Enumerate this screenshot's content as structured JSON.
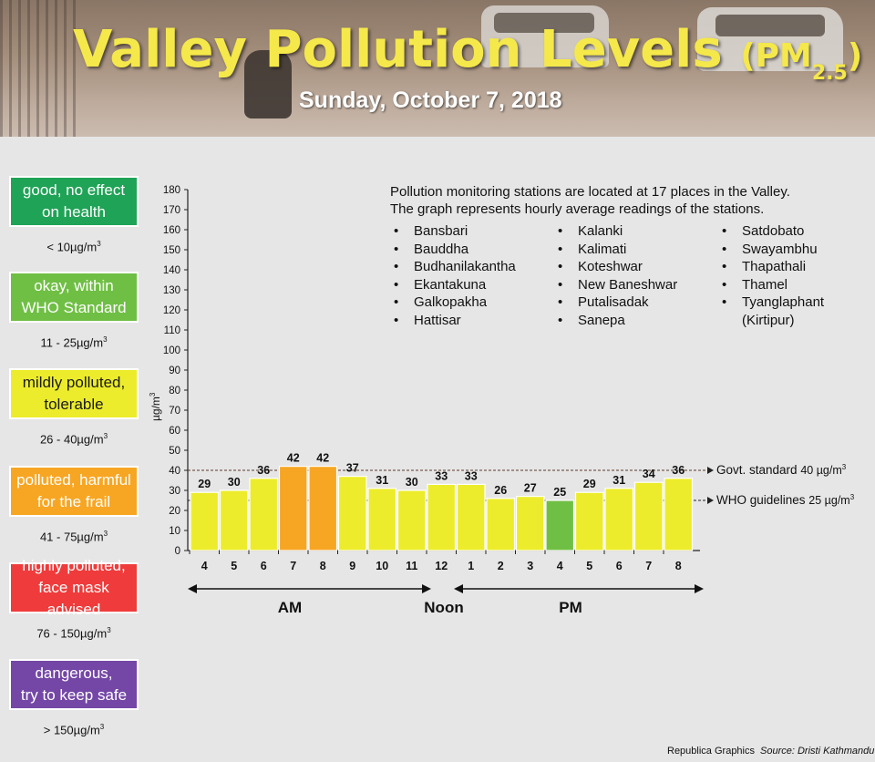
{
  "header": {
    "title": "Valley Pollution Levels",
    "title_unit": "(PM",
    "title_sub": "2.5",
    "title_close": ")",
    "date": "Sunday, October 7, 2018"
  },
  "legend": [
    {
      "label_line1": "good, no effect",
      "label_line2": "on health",
      "range_value": "< 10µg/m",
      "range_exp": "3",
      "color": "#1fa356"
    },
    {
      "label_line1": "okay, within",
      "label_line2": "WHO Standard",
      "range_value": "11 - 25µg/m",
      "range_exp": "3",
      "color": "#6fbf44"
    },
    {
      "label_line1": "mildly polluted,",
      "label_line2": "tolerable",
      "range_value": "26 - 40µg/m",
      "range_exp": "3",
      "color": "#ecec2c"
    },
    {
      "label_line1": "polluted, harmful",
      "label_line2": "for the frail",
      "range_value": "41 - 75µg/m",
      "range_exp": "3",
      "color": "#f7a623"
    },
    {
      "label_line1": "highly polluted,",
      "label_line2": "face mask advised",
      "range_value": "76 - 150µg/m",
      "range_exp": "3",
      "color": "#ef3b3b"
    },
    {
      "label_line1": "dangerous,",
      "label_line2": "try to keep safe",
      "range_value": "> 150µg/m",
      "range_exp": "3",
      "color": "#7447a6"
    }
  ],
  "info": {
    "line1": "Pollution monitoring stations are located at 17 places in the Valley.",
    "line2": "The graph represents hourly average readings of the stations.",
    "bullet": "•",
    "stations_col1": [
      "Bansbari",
      "Bauddha",
      "Budhanilakantha",
      "Ekantakuna",
      "Galkopakha",
      "Hattisar"
    ],
    "stations_col2": [
      "Kalanki",
      "Kalimati",
      "Koteshwar",
      "New Baneshwar",
      "Putalisadak",
      "Sanepa"
    ],
    "stations_col3": [
      "Satdobato",
      "Swayambhu",
      "Thapathali",
      "Thamel",
      "Tyanglaphant",
      "(Kirtipur)"
    ]
  },
  "chart_data": {
    "type": "bar",
    "ylabel": "µg/m",
    "ylabel_exp": "3",
    "ylim": [
      0,
      180
    ],
    "ytick_step": 10,
    "categories": [
      "4",
      "5",
      "6",
      "7",
      "8",
      "9",
      "10",
      "11",
      "12",
      "1",
      "2",
      "3",
      "4",
      "5",
      "6",
      "7",
      "8"
    ],
    "values": [
      29,
      30,
      36,
      42,
      42,
      37,
      31,
      30,
      33,
      33,
      26,
      27,
      25,
      29,
      31,
      34,
      36
    ],
    "period_am": "AM",
    "period_noon": "Noon",
    "period_pm": "PM",
    "reference_lines": [
      {
        "label": "Govt. standard",
        "value_label": "40 µg/m",
        "exp": "3",
        "value": 40,
        "color": "#5a3a2a"
      },
      {
        "label": "WHO guidelines",
        "value_label": "25 µg/m",
        "exp": "3",
        "value": 25,
        "color": "#222222"
      }
    ],
    "colors": {
      "tolerable": "#ecec2c",
      "harmful": "#f7a623",
      "okay": "#6fbf44"
    }
  },
  "footer": {
    "credit": "Republica Graphics",
    "source": "Source: Dristi Kathmandu"
  }
}
